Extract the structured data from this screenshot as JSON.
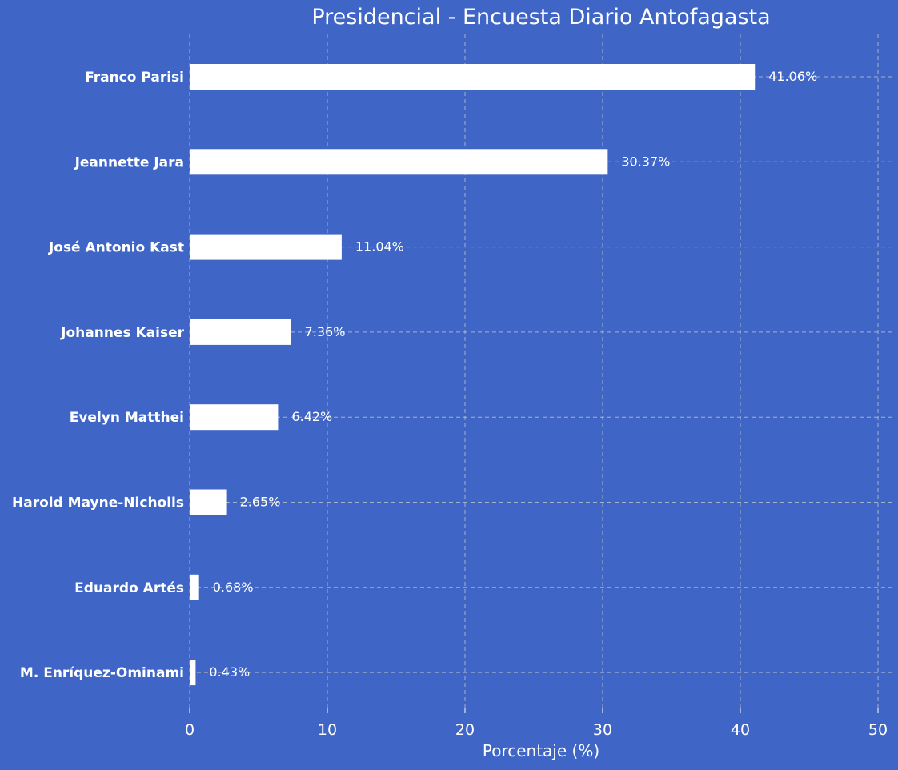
{
  "chart_data": {
    "type": "bar",
    "orientation": "horizontal",
    "title": "Presidencial - Encuesta Diario Antofagasta",
    "xlabel": "Porcentaje (%)",
    "ylabel": "",
    "xlim": [
      0,
      50
    ],
    "xticks": [
      0,
      10,
      20,
      30,
      40,
      50
    ],
    "grid": true,
    "categories": [
      "Franco Parisi",
      "Jeannette Jara",
      "José Antonio Kast",
      "Johannes Kaiser",
      "Evelyn Matthei",
      "Harold Mayne-Nicholls",
      "Eduardo Artés",
      "M. Enríquez-Ominami"
    ],
    "values": [
      41.06,
      30.37,
      11.04,
      7.36,
      6.42,
      2.65,
      0.68,
      0.43
    ],
    "value_labels": [
      "41.06%",
      "30.37%",
      "11.04%",
      "7.36%",
      "6.42%",
      "2.65%",
      "0.68%",
      "0.43%"
    ],
    "colors": {
      "background": "#3f66c6",
      "bar": "#ffffff",
      "text": "#ffffff",
      "grid": "#c9c9c9"
    }
  }
}
